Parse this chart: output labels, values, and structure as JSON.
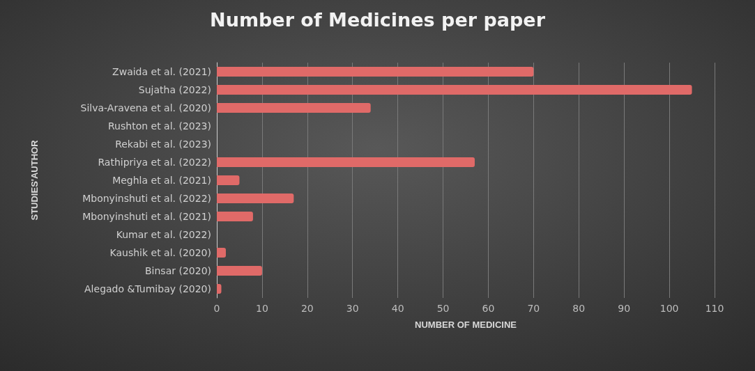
{
  "chart_data": {
    "type": "bar",
    "orientation": "horizontal",
    "title": "Number of Medicines per paper",
    "xlabel": "NUMBER OF MEDICINE",
    "ylabel": "STUDIES'AUTHOR",
    "categories": [
      "Zwaida et al. (2021)",
      "Sujatha (2022)",
      "Silva-Aravena et al. (2020)",
      "Rushton et al. (2023)",
      "Rekabi et al. (2023)",
      "Rathipriya et al. (2022)",
      "Meghla et al. (2021)",
      "Mbonyinshuti et al. (2022)",
      "Mbonyinshuti et al. (2021)",
      "Kumar et al. (2022)",
      "Kaushik et al. (2020)",
      "Binsar (2020)",
      "Alegado &Tumibay (2020)"
    ],
    "values": [
      70,
      105,
      34,
      0,
      0,
      57,
      5,
      17,
      8,
      0,
      2,
      10,
      1
    ],
    "color": "#e06a68",
    "xlim": [
      0,
      110
    ],
    "xticks": [
      0,
      10,
      20,
      30,
      40,
      50,
      60,
      70,
      80,
      90,
      100,
      110
    ],
    "grid": "x"
  }
}
